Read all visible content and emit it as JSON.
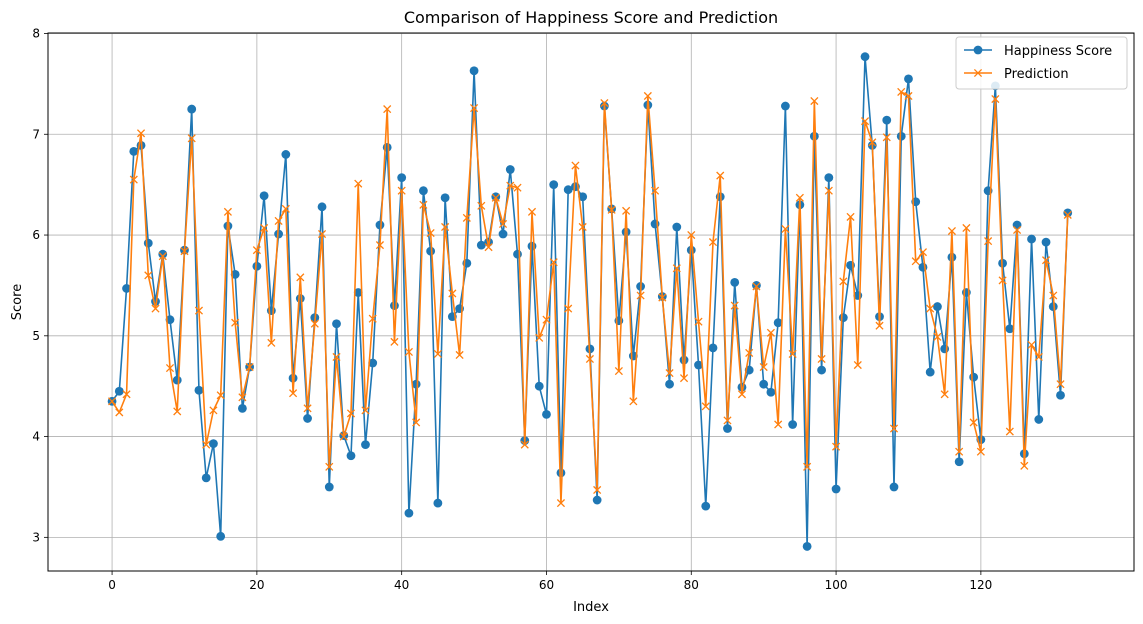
{
  "chart_data": {
    "type": "line",
    "title": "Comparison of Happiness Score and Prediction",
    "xlabel": "Index",
    "ylabel": "Score",
    "xlim": [
      -8.85,
      141.15
    ],
    "ylim": [
      2.666,
      8.005
    ],
    "xticks": [
      0,
      20,
      40,
      60,
      80,
      100,
      120
    ],
    "yticks": [
      3,
      4,
      5,
      6,
      7,
      8
    ],
    "grid": true,
    "legend_position": "top-right",
    "series": [
      {
        "name": "Happiness Score",
        "color": "#1f77b4",
        "marker": "circle",
        "values": [
          4.35,
          4.45,
          5.47,
          6.83,
          6.89,
          5.92,
          5.34,
          5.81,
          5.16,
          4.56,
          5.85,
          7.25,
          4.46,
          3.59,
          3.93,
          3.01,
          6.09,
          5.61,
          4.28,
          4.69,
          5.69,
          6.39,
          5.25,
          6.01,
          6.8,
          4.58,
          5.37,
          4.18,
          5.18,
          6.28,
          3.5,
          5.12,
          4.01,
          3.81,
          5.43,
          3.92,
          4.73,
          6.1,
          6.87,
          5.3,
          6.57,
          3.24,
          4.52,
          6.44,
          5.84,
          3.34,
          6.37,
          5.19,
          5.27,
          5.72,
          7.63,
          5.9,
          5.93,
          6.38,
          6.01,
          6.65,
          5.81,
          3.96,
          5.89,
          4.5,
          4.22,
          6.5,
          3.64,
          6.45,
          6.48,
          6.38,
          4.87,
          3.37,
          7.28,
          6.26,
          5.15,
          6.03,
          4.8,
          5.49,
          7.29,
          6.11,
          5.39,
          4.52,
          6.08,
          4.76,
          5.85,
          4.71,
          3.31,
          4.88,
          6.38,
          4.08,
          5.53,
          4.49,
          4.66,
          5.5,
          4.52,
          4.44,
          5.13,
          7.28,
          4.12,
          6.3,
          2.91,
          6.98,
          4.66,
          6.57,
          3.48,
          5.18,
          5.7,
          5.4,
          7.77,
          6.89,
          5.19,
          7.14,
          3.5,
          6.98,
          7.55,
          6.33,
          5.68,
          4.64,
          5.29,
          4.87,
          5.78,
          3.75,
          5.43,
          4.59,
          3.97,
          6.44,
          7.48,
          5.72,
          5.07,
          6.1,
          3.83,
          5.96,
          4.17,
          5.93,
          5.29,
          4.41,
          6.22
        ]
      },
      {
        "name": "Prediction",
        "color": "#ff7f0e",
        "marker": "x",
        "values": [
          4.35,
          4.24,
          4.42,
          6.55,
          7.01,
          5.6,
          5.27,
          5.79,
          4.68,
          4.25,
          5.84,
          6.96,
          5.25,
          3.92,
          4.26,
          4.41,
          6.23,
          5.13,
          4.39,
          4.69,
          5.85,
          6.07,
          4.93,
          6.14,
          6.26,
          4.43,
          5.58,
          4.28,
          5.12,
          6.01,
          3.7,
          4.79,
          4.0,
          4.23,
          6.51,
          4.26,
          5.17,
          5.9,
          7.25,
          4.94,
          6.44,
          4.84,
          4.14,
          6.3,
          6.02,
          4.82,
          6.08,
          5.42,
          4.81,
          6.17,
          7.26,
          6.29,
          5.88,
          6.37,
          6.11,
          6.49,
          6.47,
          3.92,
          6.23,
          4.98,
          5.16,
          5.73,
          3.34,
          5.27,
          6.69,
          6.08,
          4.77,
          3.47,
          7.31,
          6.25,
          4.65,
          6.24,
          4.35,
          5.4,
          7.38,
          6.44,
          5.38,
          4.63,
          5.67,
          4.58,
          6.0,
          5.14,
          4.3,
          5.93,
          6.59,
          4.16,
          5.3,
          4.42,
          4.83,
          5.49,
          4.69,
          5.03,
          4.12,
          6.06,
          4.82,
          6.37,
          3.7,
          7.33,
          4.77,
          6.44,
          3.9,
          5.54,
          6.18,
          4.71,
          7.13,
          6.92,
          5.1,
          6.97,
          4.08,
          7.42,
          7.38,
          5.74,
          5.83,
          5.27,
          4.99,
          4.42,
          6.04,
          3.85,
          6.07,
          4.14,
          3.85,
          5.94,
          7.35,
          5.55,
          4.05,
          6.05,
          3.71,
          4.91,
          4.79,
          5.75,
          5.4,
          4.52,
          6.2
        ]
      }
    ]
  }
}
